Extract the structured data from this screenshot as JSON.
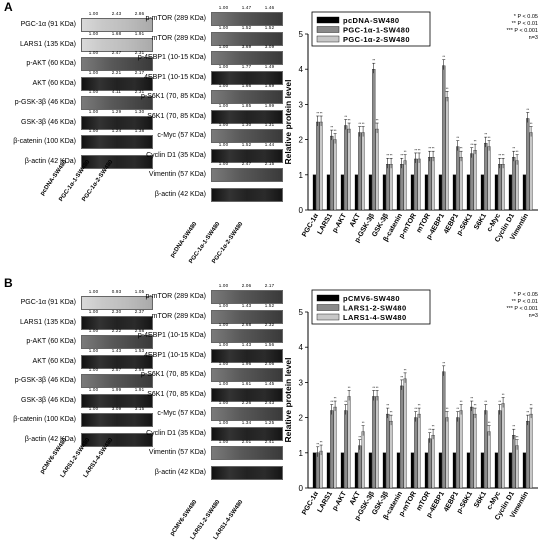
{
  "panels": [
    {
      "letter": "A",
      "blot_left": [
        {
          "label": "PGC-1α (91 KDa)",
          "nums": [
            "1.00",
            "2.43",
            "2.86"
          ],
          "style": "faint"
        },
        {
          "label": "LARS1 (135 KDa)",
          "nums": [
            "1.00",
            "1.68",
            "1.91"
          ],
          "style": "faint"
        },
        {
          "label": "p-AKT (60 KDa)",
          "nums": [
            "1.00",
            "2.47",
            "2.31"
          ],
          "style": "mid"
        },
        {
          "label": "AKT (60 KDa)",
          "nums": [
            "1.00",
            "2.21",
            "2.17"
          ],
          "style": "dark"
        },
        {
          "label": "p-GSK-3β (46 KDa)",
          "nums": [
            "1.00",
            "4.11",
            "2.31"
          ],
          "style": "mid"
        },
        {
          "label": "GSK-3β (46 KDa)",
          "nums": [
            "1.00",
            "1.29",
            "1.30"
          ],
          "style": "dark"
        },
        {
          "label": "β-catenin (100 KDa)",
          "nums": [
            "1.00",
            "1.24",
            "1.38"
          ],
          "style": "dark"
        },
        {
          "label": "β-actin (42 KDa)",
          "nums": [],
          "style": "dark"
        }
      ],
      "blot_right": [
        {
          "label": "p-mTOR (289 KDa)",
          "nums": [
            "1.00",
            "1.47",
            "1.46"
          ],
          "style": "mid"
        },
        {
          "label": "mTOR (289 KDa)",
          "nums": [
            "1.00",
            "1.52",
            "1.52"
          ],
          "style": "mid"
        },
        {
          "label": "p-4EBP1 (10-15 KDa)",
          "nums": [
            "1.00",
            "3.69",
            "3.09"
          ],
          "style": "mid"
        },
        {
          "label": "4EBP1 (10-15 KDa)",
          "nums": [
            "1.00",
            "1.77",
            "1.49"
          ],
          "style": "dark"
        },
        {
          "label": "p-S6K1 (70, 85 KDa)",
          "nums": [
            "1.00",
            "1.66",
            "1.69"
          ],
          "style": "mid"
        },
        {
          "label": "S6K1 (70, 85 KDa)",
          "nums": [
            "1.00",
            "1.85",
            "1.99"
          ],
          "style": "dark"
        },
        {
          "label": "c-Myc (57 KDa)",
          "nums": [
            "1.00",
            "1.30",
            "1.31"
          ],
          "style": "mid"
        },
        {
          "label": "Cyclin D1 (35 KDa)",
          "nums": [
            "1.00",
            "1.52",
            "1.44"
          ],
          "style": "dark"
        },
        {
          "label": "Vimentin (57 KDa)",
          "nums": [
            "1.00",
            "2.47",
            "2.15"
          ],
          "style": "mid"
        },
        {
          "label": "β-actin (42 KDa)",
          "nums": [],
          "style": "dark"
        }
      ],
      "samples": [
        "pcDNA-SW480",
        "PGC-1α-1-SW480",
        "PGC-1α-2-SW480"
      ],
      "legend": [
        "pcDNA-SW480",
        "PGC-1α-1-SW480",
        "PGC-1α-2-SW480"
      ],
      "sig": [
        "* P < 0.05",
        "** P < 0.01",
        "*** P < 0.001",
        "n=3"
      ]
    },
    {
      "letter": "B",
      "blot_left": [
        {
          "label": "PGC-1α (91 KDa)",
          "nums": [
            "1.00",
            "0.93",
            "1.05"
          ],
          "style": "faint"
        },
        {
          "label": "LARS1 (135 KDa)",
          "nums": [
            "1.00",
            "2.30",
            "2.37"
          ],
          "style": "dark"
        },
        {
          "label": "p-AKT (60 KDa)",
          "nums": [
            "1.00",
            "2.22",
            "2.58"
          ],
          "style": "mid"
        },
        {
          "label": "AKT (60 KDa)",
          "nums": [
            "1.00",
            "1.43",
            "1.53"
          ],
          "style": "dark"
        },
        {
          "label": "p-GSK-3β (46 KDa)",
          "nums": [
            "1.00",
            "2.57",
            "2.58"
          ],
          "style": "mid"
        },
        {
          "label": "GSK-3β (46 KDa)",
          "nums": [
            "1.00",
            "1.99",
            "1.91"
          ],
          "style": "dark"
        },
        {
          "label": "β-catenin (100 KDa)",
          "nums": [
            "1.00",
            "3.09",
            "3.15"
          ],
          "style": "dark"
        },
        {
          "label": "β-actin (42 KDa)",
          "nums": [],
          "style": "dark"
        }
      ],
      "blot_right": [
        {
          "label": "p-mTOR (289 KDa)",
          "nums": [
            "1.00",
            "2.06",
            "2.17"
          ],
          "style": "mid"
        },
        {
          "label": "mTOR (289 KDa)",
          "nums": [
            "1.00",
            "1.43",
            "1.52"
          ],
          "style": "mid"
        },
        {
          "label": "p-4EBP1 (10-15 KDa)",
          "nums": [
            "1.00",
            "2.68",
            "2.32"
          ],
          "style": "mid"
        },
        {
          "label": "4EBP1 (10-15 KDa)",
          "nums": [
            "1.00",
            "1.43",
            "1.56"
          ],
          "style": "dark"
        },
        {
          "label": "p-S6K1 (70, 85 KDa)",
          "nums": [
            "1.00",
            "1.96",
            "2.06"
          ],
          "style": "mid"
        },
        {
          "label": "S6K1 (70, 85 KDa)",
          "nums": [
            "1.00",
            "1.61",
            "1.45"
          ],
          "style": "dark"
        },
        {
          "label": "c-Myc (57 KDa)",
          "nums": [
            "1.00",
            "2.26",
            "2.43"
          ],
          "style": "mid"
        },
        {
          "label": "Cyclin D1 (35 KDa)",
          "nums": [
            "1.00",
            "1.34",
            "1.25"
          ],
          "style": "dark"
        },
        {
          "label": "Vimentin (57 KDa)",
          "nums": [
            "1.00",
            "2.01",
            "2.41"
          ],
          "style": "mid"
        },
        {
          "label": "β-actin (42 KDa)",
          "nums": [],
          "style": "dark"
        }
      ],
      "samples": [
        "pCMV6-SW480",
        "LARS1-2-SW480",
        "LARS1-4-SW480"
      ],
      "legend": [
        "pCMV6-SW480",
        "LARS1-2-SW480",
        "LARS1-4-SW480"
      ],
      "sig": [
        "* P < 0.05",
        "** P < 0.01",
        "*** P < 0.001",
        "n=3"
      ]
    }
  ],
  "chart_data": [
    {
      "type": "bar",
      "ylabel": "Relative protein level",
      "ylim": [
        0,
        5
      ],
      "yticks": [
        "0",
        "1",
        "2",
        "3",
        "4",
        "5"
      ],
      "categories": [
        "PGC-1α",
        "LARS1",
        "p-AKT",
        "AKT",
        "p-GSK-3β",
        "GSK-3β",
        "β-catenin",
        "p-mTOR",
        "mTOR",
        "p-4EBP1",
        "4EBP1",
        "p-S6K1",
        "S6K1",
        "c-Myc",
        "Cyclin D1",
        "Vimentin"
      ],
      "series": [
        {
          "name": "pcDNA-SW480",
          "color": "#000000",
          "values": [
            1,
            1,
            1,
            1,
            1,
            1,
            1,
            1,
            1,
            1,
            1,
            1,
            1,
            1,
            1,
            1
          ]
        },
        {
          "name": "PGC-1α-1-SW480",
          "color": "#8a8a8a",
          "values": [
            2.5,
            2.1,
            2.4,
            2.2,
            4.0,
            1.3,
            1.3,
            1.45,
            1.5,
            4.1,
            1.8,
            1.6,
            1.9,
            1.3,
            1.5,
            2.6
          ]
        },
        {
          "name": "PGC-1α-2-SW480",
          "color": "#c8c8c8",
          "values": [
            2.5,
            2.0,
            2.3,
            2.2,
            2.3,
            1.3,
            1.4,
            1.45,
            1.5,
            3.2,
            1.5,
            1.7,
            1.8,
            1.3,
            1.4,
            2.2
          ]
        }
      ],
      "legend": "top-left"
    },
    {
      "type": "bar",
      "ylabel": "Relative protein level",
      "ylim": [
        0,
        5
      ],
      "yticks": [
        "0",
        "1",
        "2",
        "3",
        "4",
        "5"
      ],
      "categories": [
        "PGC-1α",
        "LARS1",
        "p-AKT",
        "AKT",
        "p-GSK-3β",
        "GSK-3β",
        "β-catenin",
        "p-mTOR",
        "mTOR",
        "p-4EBP1",
        "4EBP1",
        "p-S6K1",
        "S6K1",
        "c-Myc",
        "Cyclin D1",
        "Vimentin"
      ],
      "series": [
        {
          "name": "pCMV6-SW480",
          "color": "#000000",
          "values": [
            1,
            1,
            1,
            1,
            1,
            1,
            1,
            1,
            1,
            1,
            1,
            1,
            1,
            1,
            1,
            1
          ]
        },
        {
          "name": "LARS1-2-SW480",
          "color": "#8a8a8a",
          "values": [
            1.0,
            2.2,
            2.2,
            1.2,
            2.6,
            2.1,
            2.9,
            2.0,
            1.4,
            3.3,
            2.0,
            2.3,
            2.2,
            2.2,
            1.5,
            1.9
          ]
        },
        {
          "name": "LARS1-4-SW480",
          "color": "#c8c8c8",
          "values": [
            1.05,
            2.3,
            2.6,
            1.6,
            2.6,
            1.9,
            3.1,
            2.1,
            1.5,
            2.0,
            2.2,
            2.1,
            1.6,
            2.4,
            1.2,
            2.1
          ]
        }
      ],
      "legend": "top-left"
    }
  ]
}
